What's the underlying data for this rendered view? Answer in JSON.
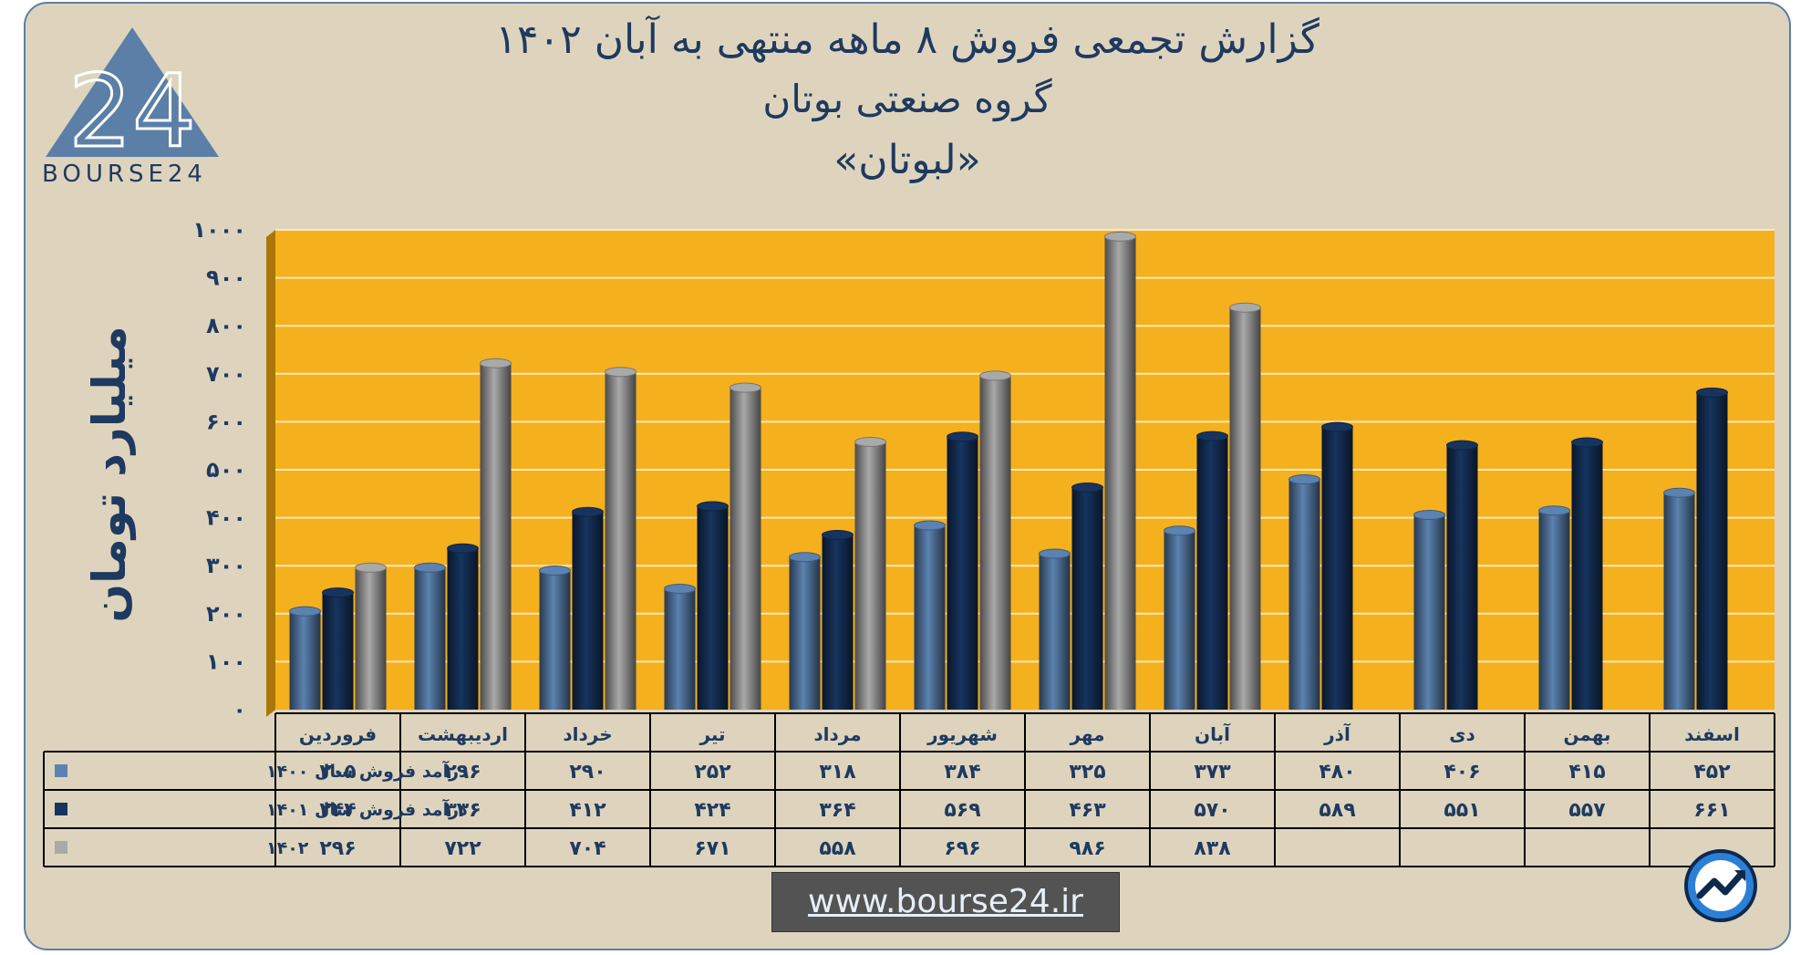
{
  "title": {
    "line1": "گزارش تجمعی فروش ۸ ماهه منتهی به آبان ۱۴۰۲",
    "line2": "گروه صنعتی بوتان",
    "line3": "«لبوتان»"
  },
  "logo": {
    "text": "BOURSE24",
    "mark": "24"
  },
  "footer": {
    "website": "www.bourse24.ir"
  },
  "colors": {
    "s1400": "#5b82b0",
    "s1401": "#16345e",
    "s1402": "#a9a9a9",
    "plot_bg": "#f5b01e",
    "background": "#ded4bd"
  },
  "icons": {
    "corner": "trend-arrow-icon"
  },
  "chart_data": {
    "type": "bar",
    "ylabel": "میلیارد تومان",
    "ylim": [
      0,
      1000
    ],
    "yticks": [
      "۰",
      "۱۰۰",
      "۲۰۰",
      "۳۰۰",
      "۴۰۰",
      "۵۰۰",
      "۶۰۰",
      "۷۰۰",
      "۸۰۰",
      "۹۰۰",
      "۱۰۰۰"
    ],
    "grid": true,
    "categories": [
      "فروردین",
      "اردیبهشت",
      "خرداد",
      "تیر",
      "مرداد",
      "شهریور",
      "مهر",
      "آبان",
      "آذر",
      "دی",
      "بهمن",
      "اسفند"
    ],
    "series": [
      {
        "name": "درآمد فروش سال ۱۴۰۰",
        "values": [
          205,
          296,
          290,
          252,
          318,
          384,
          325,
          373,
          480,
          406,
          415,
          452
        ],
        "labels": [
          "۲۰۵",
          "۲۹۶",
          "۲۹۰",
          "۲۵۲",
          "۳۱۸",
          "۳۸۴",
          "۳۲۵",
          "۳۷۳",
          "۴۸۰",
          "۴۰۶",
          "۴۱۵",
          "۴۵۲"
        ]
      },
      {
        "name": "درآمد فروش سال ۱۴۰۱",
        "values": [
          244,
          336,
          412,
          424,
          364,
          569,
          463,
          570,
          589,
          551,
          557,
          661
        ],
        "labels": [
          "۲۴۴",
          "۳۳۶",
          "۴۱۲",
          "۴۲۴",
          "۳۶۴",
          "۵۶۹",
          "۴۶۳",
          "۵۷۰",
          "۵۸۹",
          "۵۵۱",
          "۵۵۷",
          "۶۶۱"
        ]
      },
      {
        "name": "۱۴۰۲",
        "values": [
          296,
          722,
          704,
          671,
          558,
          696,
          986,
          838,
          null,
          null,
          null,
          null
        ],
        "labels": [
          "۲۹۶",
          "۷۲۲",
          "۷۰۴",
          "۶۷۱",
          "۵۵۸",
          "۶۹۶",
          "۹۸۶",
          "۸۳۸",
          "",
          "",
          "",
          ""
        ]
      }
    ]
  }
}
